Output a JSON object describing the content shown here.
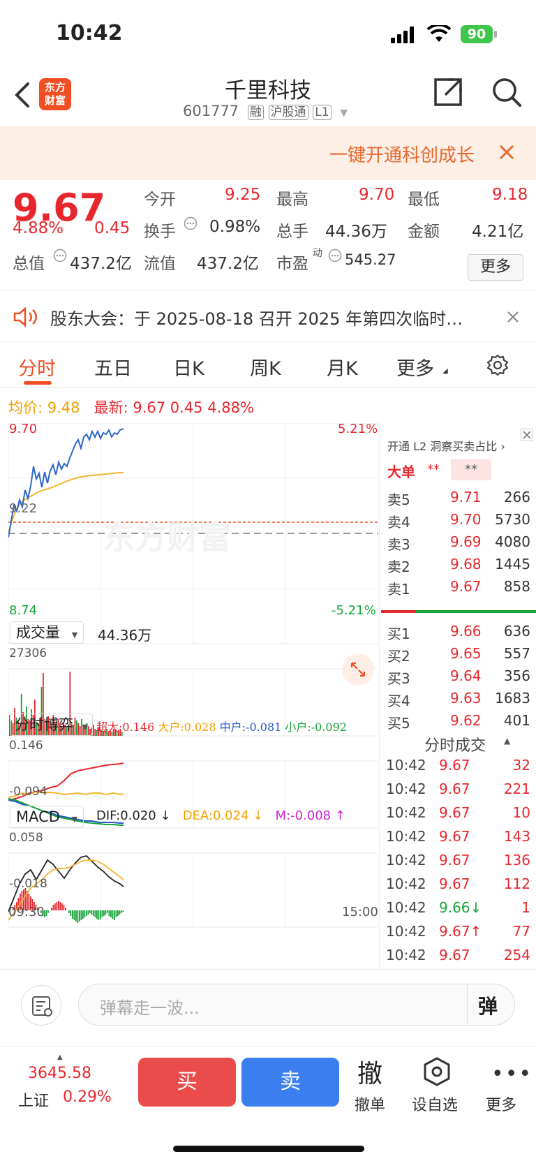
{
  "status_bar": {
    "time": "10:42",
    "battery": "90"
  },
  "nav": {
    "logo_line1": "东方",
    "logo_line2": "财富",
    "title": "千里科技",
    "code": "601777",
    "badges": [
      "融",
      "沪股通",
      "L1"
    ]
  },
  "banner": {
    "text": "一键开通科创成长"
  },
  "quote": {
    "price": "9.67",
    "change_pct": "4.88%",
    "change": "0.45",
    "open_label": "今开",
    "open": "9.25",
    "high_label": "最高",
    "high": "9.70",
    "low_label": "最低",
    "low": "9.18",
    "turnover_label": "换手",
    "turnover": "0.98%",
    "volume_label": "总手",
    "volume": "44.36万",
    "amount_label": "金额",
    "amount": "4.21亿",
    "mktcap_label": "总值",
    "mktcap": "437.2亿",
    "float_label": "流值",
    "float": "437.2亿",
    "pe_label": "市盈",
    "pe_sup": "动",
    "pe": "545.27",
    "more_label": "更多"
  },
  "notice": {
    "text": "股东大会：于 2025-08-18 召开 2025 年第四次临时…"
  },
  "tabs": [
    "分时",
    "五日",
    "日K",
    "周K",
    "月K",
    "更多"
  ],
  "summary": {
    "avg_label": "均价:",
    "avg": "9.48",
    "last_label": "最新:",
    "last": "9.67",
    "chg": "0.45",
    "pct": "4.88%"
  },
  "price_chart": {
    "y_max": "9.70",
    "y_mid": "9.22",
    "y_min": "8.74",
    "pct_max": "5.21%",
    "pct_min": "-5.21%"
  },
  "volume": {
    "label": "成交量",
    "total": "44.36万",
    "max": "27306"
  },
  "game": {
    "label": "分时博弈",
    "super_label": "超大:",
    "super": "0.146",
    "big_label": "大户:",
    "big": "0.028",
    "mid_label": "中户:",
    "mid": "-0.081",
    "small_label": "小户:",
    "small": "-0.092",
    "ymax": "0.146",
    "ymin": "-0.094"
  },
  "macd": {
    "label": "MACD",
    "dif": "DIF:0.020 ↓",
    "dea": "DEA:0.024 ↓",
    "m": "M:-0.008 ↑",
    "ymax": "0.058",
    "ymin": "-0.018"
  },
  "time_axis": {
    "start": "09:30",
    "end": "15:00"
  },
  "order_book": {
    "promo": "开通 L2 洞察买卖占比 ›",
    "big_label": "大单",
    "big_v1": "**",
    "big_v2": "**",
    "asks": [
      {
        "label": "卖5",
        "price": "9.71",
        "vol": "266"
      },
      {
        "label": "卖4",
        "price": "9.70",
        "vol": "5730"
      },
      {
        "label": "卖3",
        "price": "9.69",
        "vol": "4080"
      },
      {
        "label": "卖2",
        "price": "9.68",
        "vol": "1445"
      },
      {
        "label": "卖1",
        "price": "9.67",
        "vol": "858"
      }
    ],
    "bids": [
      {
        "label": "买1",
        "price": "9.66",
        "vol": "636"
      },
      {
        "label": "买2",
        "price": "9.65",
        "vol": "557"
      },
      {
        "label": "买3",
        "price": "9.64",
        "vol": "356"
      },
      {
        "label": "买4",
        "price": "9.63",
        "vol": "1683"
      },
      {
        "label": "买5",
        "price": "9.62",
        "vol": "401"
      }
    ],
    "ticks_label": "分时成交",
    "ticks": [
      {
        "time": "10:42",
        "price": "9.67",
        "vol": "32"
      },
      {
        "time": "10:42",
        "price": "9.67",
        "vol": "221"
      },
      {
        "time": "10:42",
        "price": "9.67",
        "vol": "10"
      },
      {
        "time": "10:42",
        "price": "9.67",
        "vol": "143"
      },
      {
        "time": "10:42",
        "price": "9.67",
        "vol": "136"
      },
      {
        "time": "10:42",
        "price": "9.67",
        "vol": "112"
      },
      {
        "time": "10:42",
        "price": "9.66↓",
        "vol": "1"
      },
      {
        "time": "10:42",
        "price": "9.67↑",
        "vol": "77"
      },
      {
        "time": "10:42",
        "price": "9.67",
        "vol": "254"
      }
    ]
  },
  "input": {
    "placeholder": "弹幕走一波...",
    "danmu_btn": "弹"
  },
  "bottom": {
    "index_value": "3645.58",
    "index_name": "上证",
    "index_pct": "0.29%",
    "buy": "买",
    "sell": "卖",
    "cancel_icon": "撤",
    "cancel": "撤单",
    "watch": "设自选",
    "more": "更多"
  }
}
